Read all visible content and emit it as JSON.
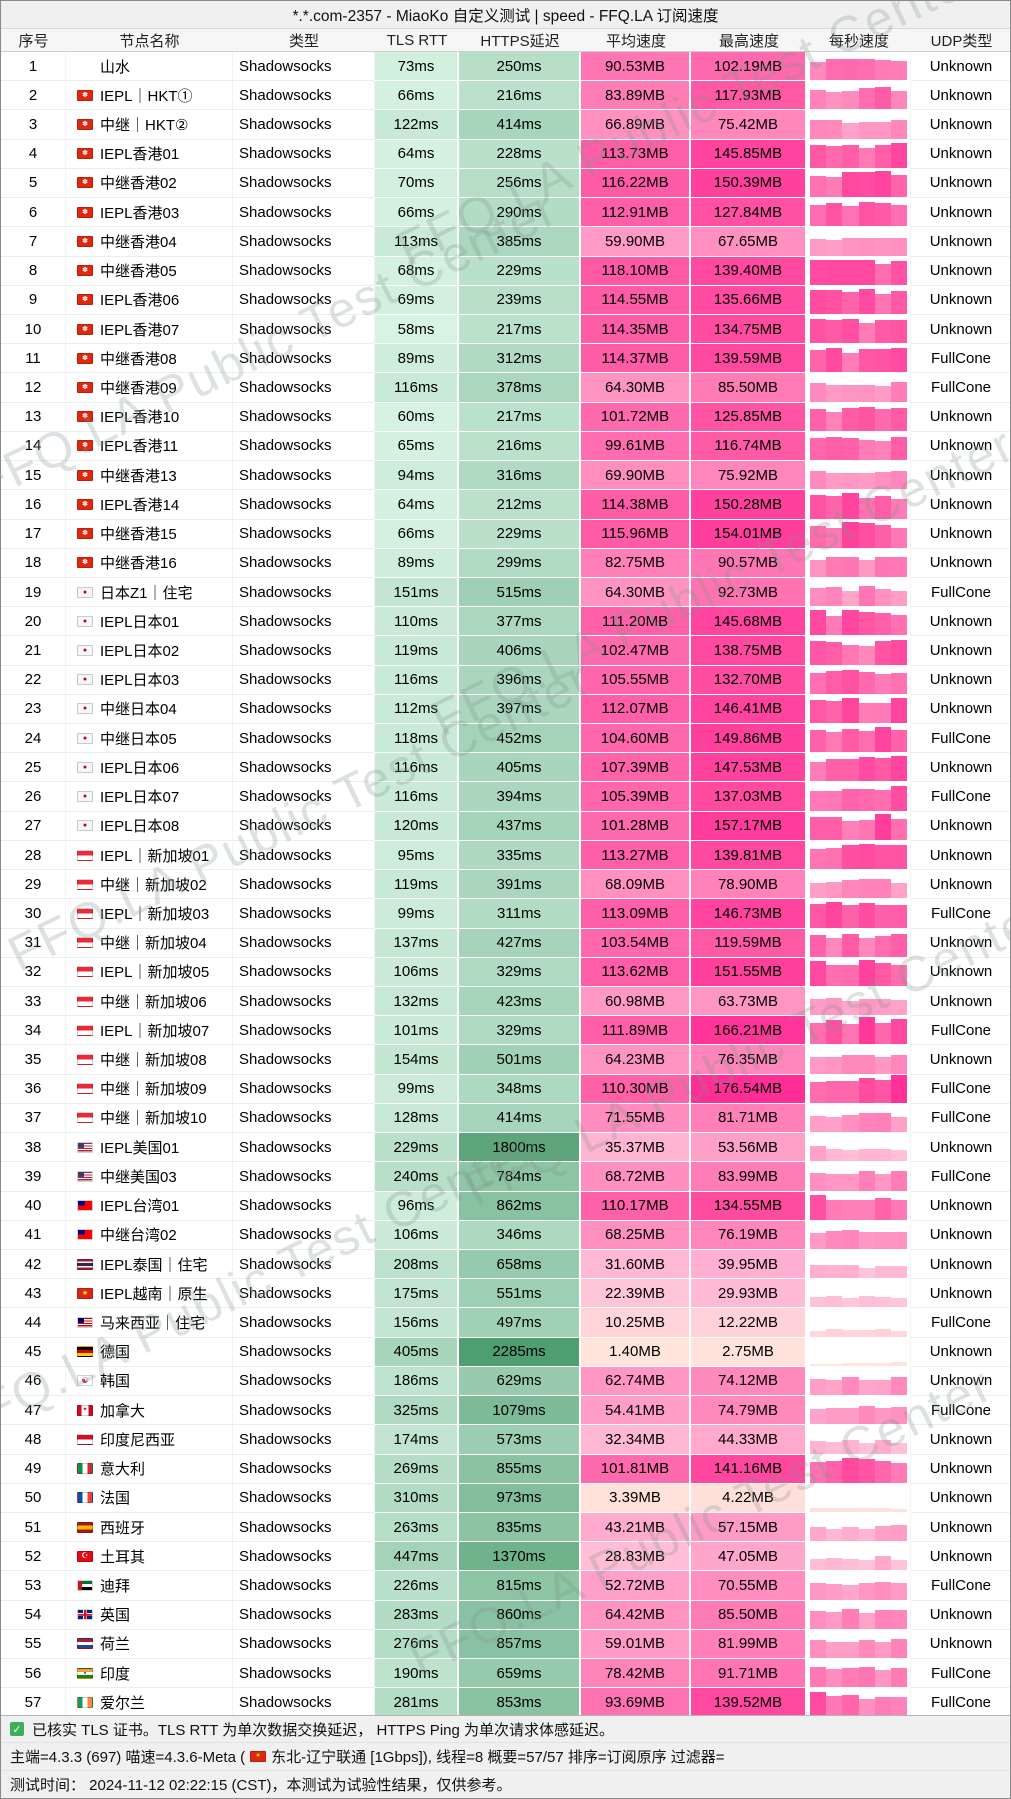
{
  "title": "*.*.com-2357 - MiaoKo 自定义测试 | speed - FFQ.LA 订阅速度",
  "watermark": "FFQ.LA Public Test Center",
  "columns": [
    "序号",
    "节点名称",
    "类型",
    "TLS RTT",
    "HTTPS延迟",
    "平均速度",
    "最高速度",
    "每秒速度",
    "UDP类型"
  ],
  "colors": {
    "titlebar_bg": "#f0f0f0",
    "green_scale": [
      "#def7e8",
      "#4f9e71"
    ],
    "pink_scale": [
      "#ffeadb",
      "#ffc3d9",
      "#ff93c2",
      "#ff5aa6",
      "#ff2d96"
    ],
    "checkbox_green": "#3fae5a",
    "flag_hk_red": "#de2910",
    "flag_jp_red": "#bc002d"
  },
  "icons": {
    "check": "✓"
  },
  "footer": {
    "tls_note": "已核实 TLS 证书。TLS RTT 为单次数据交换延迟， HTTPS Ping 为单次请求体感延迟。",
    "meta_left": "主端=4.3.3 (697) 喵速=4.3.6-Meta (",
    "meta_right": "东北-辽宁联通 [1Gbps]), 线程=8 概要=57/57 排序=订阅原序 过滤器=",
    "time_note": "测试时间： 2024-11-12 02:22:15 (CST)，本测试为试验性结果，仅供参考。"
  },
  "rows": [
    {
      "no": 1,
      "flag": "",
      "name": "山水",
      "type": "Shadowsocks",
      "tls": "73ms",
      "https": "250ms",
      "avg": "90.53MB",
      "max": "102.19MB",
      "udp": "Unknown"
    },
    {
      "no": 2,
      "flag": "hk",
      "name": "IEPL｜HKT①",
      "type": "Shadowsocks",
      "tls": "66ms",
      "https": "216ms",
      "avg": "83.89MB",
      "max": "117.93MB",
      "udp": "Unknown"
    },
    {
      "no": 3,
      "flag": "hk",
      "name": "中继｜HKT②",
      "type": "Shadowsocks",
      "tls": "122ms",
      "https": "414ms",
      "avg": "66.89MB",
      "max": "75.42MB",
      "udp": "Unknown"
    },
    {
      "no": 4,
      "flag": "hk",
      "name": "IEPL香港01",
      "type": "Shadowsocks",
      "tls": "64ms",
      "https": "228ms",
      "avg": "113.73MB",
      "max": "145.85MB",
      "udp": "Unknown"
    },
    {
      "no": 5,
      "flag": "hk",
      "name": "中继香港02",
      "type": "Shadowsocks",
      "tls": "70ms",
      "https": "256ms",
      "avg": "116.22MB",
      "max": "150.39MB",
      "udp": "Unknown"
    },
    {
      "no": 6,
      "flag": "hk",
      "name": "IEPL香港03",
      "type": "Shadowsocks",
      "tls": "66ms",
      "https": "290ms",
      "avg": "112.91MB",
      "max": "127.84MB",
      "udp": "Unknown"
    },
    {
      "no": 7,
      "flag": "hk",
      "name": "中继香港04",
      "type": "Shadowsocks",
      "tls": "113ms",
      "https": "385ms",
      "avg": "59.90MB",
      "max": "67.65MB",
      "udp": "Unknown"
    },
    {
      "no": 8,
      "flag": "hk",
      "name": "中继香港05",
      "type": "Shadowsocks",
      "tls": "68ms",
      "https": "229ms",
      "avg": "118.10MB",
      "max": "139.40MB",
      "udp": "Unknown"
    },
    {
      "no": 9,
      "flag": "hk",
      "name": "IEPL香港06",
      "type": "Shadowsocks",
      "tls": "69ms",
      "https": "239ms",
      "avg": "114.55MB",
      "max": "135.66MB",
      "udp": "Unknown"
    },
    {
      "no": 10,
      "flag": "hk",
      "name": "IEPL香港07",
      "type": "Shadowsocks",
      "tls": "58ms",
      "https": "217ms",
      "avg": "114.35MB",
      "max": "134.75MB",
      "udp": "Unknown"
    },
    {
      "no": 11,
      "flag": "hk",
      "name": "中继香港08",
      "type": "Shadowsocks",
      "tls": "89ms",
      "https": "312ms",
      "avg": "114.37MB",
      "max": "139.59MB",
      "udp": "FullCone"
    },
    {
      "no": 12,
      "flag": "hk",
      "name": "中继香港09",
      "type": "Shadowsocks",
      "tls": "116ms",
      "https": "378ms",
      "avg": "64.30MB",
      "max": "85.50MB",
      "udp": "FullCone"
    },
    {
      "no": 13,
      "flag": "hk",
      "name": "IEPL香港10",
      "type": "Shadowsocks",
      "tls": "60ms",
      "https": "217ms",
      "avg": "101.72MB",
      "max": "125.85MB",
      "udp": "Unknown"
    },
    {
      "no": 14,
      "flag": "hk",
      "name": "IEPL香港11",
      "type": "Shadowsocks",
      "tls": "65ms",
      "https": "216ms",
      "avg": "99.61MB",
      "max": "116.74MB",
      "udp": "Unknown"
    },
    {
      "no": 15,
      "flag": "hk",
      "name": "中继香港13",
      "type": "Shadowsocks",
      "tls": "94ms",
      "https": "316ms",
      "avg": "69.90MB",
      "max": "75.92MB",
      "udp": "Unknown"
    },
    {
      "no": 16,
      "flag": "hk",
      "name": "IEPL香港14",
      "type": "Shadowsocks",
      "tls": "64ms",
      "https": "212ms",
      "avg": "114.38MB",
      "max": "150.28MB",
      "udp": "Unknown"
    },
    {
      "no": 17,
      "flag": "hk",
      "name": "中继香港15",
      "type": "Shadowsocks",
      "tls": "66ms",
      "https": "229ms",
      "avg": "115.96MB",
      "max": "154.01MB",
      "udp": "Unknown"
    },
    {
      "no": 18,
      "flag": "hk",
      "name": "中继香港16",
      "type": "Shadowsocks",
      "tls": "89ms",
      "https": "299ms",
      "avg": "82.75MB",
      "max": "90.57MB",
      "udp": "Unknown"
    },
    {
      "no": 19,
      "flag": "jp",
      "name": "日本Z1｜住宅",
      "type": "Shadowsocks",
      "tls": "151ms",
      "https": "515ms",
      "avg": "64.30MB",
      "max": "92.73MB",
      "udp": "FullCone"
    },
    {
      "no": 20,
      "flag": "jp",
      "name": "IEPL日本01",
      "type": "Shadowsocks",
      "tls": "110ms",
      "https": "377ms",
      "avg": "111.20MB",
      "max": "145.68MB",
      "udp": "Unknown"
    },
    {
      "no": 21,
      "flag": "jp",
      "name": "IEPL日本02",
      "type": "Shadowsocks",
      "tls": "119ms",
      "https": "406ms",
      "avg": "102.47MB",
      "max": "138.75MB",
      "udp": "Unknown"
    },
    {
      "no": 22,
      "flag": "jp",
      "name": "IEPL日本03",
      "type": "Shadowsocks",
      "tls": "116ms",
      "https": "396ms",
      "avg": "105.55MB",
      "max": "132.70MB",
      "udp": "Unknown"
    },
    {
      "no": 23,
      "flag": "jp",
      "name": "中继日本04",
      "type": "Shadowsocks",
      "tls": "112ms",
      "https": "397ms",
      "avg": "112.07MB",
      "max": "146.41MB",
      "udp": "Unknown"
    },
    {
      "no": 24,
      "flag": "jp",
      "name": "中继日本05",
      "type": "Shadowsocks",
      "tls": "118ms",
      "https": "452ms",
      "avg": "104.60MB",
      "max": "149.86MB",
      "udp": "FullCone"
    },
    {
      "no": 25,
      "flag": "jp",
      "name": "IEPL日本06",
      "type": "Shadowsocks",
      "tls": "116ms",
      "https": "405ms",
      "avg": "107.39MB",
      "max": "147.53MB",
      "udp": "Unknown"
    },
    {
      "no": 26,
      "flag": "jp",
      "name": "IEPL日本07",
      "type": "Shadowsocks",
      "tls": "116ms",
      "https": "394ms",
      "avg": "105.39MB",
      "max": "137.03MB",
      "udp": "FullCone"
    },
    {
      "no": 27,
      "flag": "jp",
      "name": "IEPL日本08",
      "type": "Shadowsocks",
      "tls": "120ms",
      "https": "437ms",
      "avg": "101.28MB",
      "max": "157.17MB",
      "udp": "Unknown"
    },
    {
      "no": 28,
      "flag": "sg",
      "name": "IEPL｜新加坡01",
      "type": "Shadowsocks",
      "tls": "95ms",
      "https": "335ms",
      "avg": "113.27MB",
      "max": "139.81MB",
      "udp": "Unknown"
    },
    {
      "no": 29,
      "flag": "sg",
      "name": "中继｜新加坡02",
      "type": "Shadowsocks",
      "tls": "119ms",
      "https": "391ms",
      "avg": "68.09MB",
      "max": "78.90MB",
      "udp": "Unknown"
    },
    {
      "no": 30,
      "flag": "sg",
      "name": "IEPL｜新加坡03",
      "type": "Shadowsocks",
      "tls": "99ms",
      "https": "311ms",
      "avg": "113.09MB",
      "max": "146.73MB",
      "udp": "FullCone"
    },
    {
      "no": 31,
      "flag": "sg",
      "name": "中继｜新加坡04",
      "type": "Shadowsocks",
      "tls": "137ms",
      "https": "427ms",
      "avg": "103.54MB",
      "max": "119.59MB",
      "udp": "Unknown"
    },
    {
      "no": 32,
      "flag": "sg",
      "name": "IEPL｜新加坡05",
      "type": "Shadowsocks",
      "tls": "106ms",
      "https": "329ms",
      "avg": "113.62MB",
      "max": "151.55MB",
      "udp": "Unknown"
    },
    {
      "no": 33,
      "flag": "sg",
      "name": "中继｜新加坡06",
      "type": "Shadowsocks",
      "tls": "132ms",
      "https": "423ms",
      "avg": "60.98MB",
      "max": "63.73MB",
      "udp": "Unknown"
    },
    {
      "no": 34,
      "flag": "sg",
      "name": "IEPL｜新加坡07",
      "type": "Shadowsocks",
      "tls": "101ms",
      "https": "329ms",
      "avg": "111.89MB",
      "max": "166.21MB",
      "udp": "FullCone"
    },
    {
      "no": 35,
      "flag": "sg",
      "name": "中继｜新加坡08",
      "type": "Shadowsocks",
      "tls": "154ms",
      "https": "501ms",
      "avg": "64.23MB",
      "max": "76.35MB",
      "udp": "Unknown"
    },
    {
      "no": 36,
      "flag": "sg",
      "name": "中继｜新加坡09",
      "type": "Shadowsocks",
      "tls": "99ms",
      "https": "348ms",
      "avg": "110.30MB",
      "max": "176.54MB",
      "udp": "FullCone"
    },
    {
      "no": 37,
      "flag": "sg",
      "name": "中继｜新加坡10",
      "type": "Shadowsocks",
      "tls": "128ms",
      "https": "414ms",
      "avg": "71.55MB",
      "max": "81.71MB",
      "udp": "FullCone"
    },
    {
      "no": 38,
      "flag": "us",
      "name": "IEPL美国01",
      "type": "Shadowsocks",
      "tls": "229ms",
      "https": "1800ms",
      "avg": "35.37MB",
      "max": "53.56MB",
      "udp": "Unknown"
    },
    {
      "no": 39,
      "flag": "us",
      "name": "中继美国03",
      "type": "Shadowsocks",
      "tls": "240ms",
      "https": "784ms",
      "avg": "68.72MB",
      "max": "83.99MB",
      "udp": "FullCone"
    },
    {
      "no": 40,
      "flag": "tw",
      "name": "IEPL台湾01",
      "type": "Shadowsocks",
      "tls": "96ms",
      "https": "862ms",
      "avg": "110.17MB",
      "max": "134.55MB",
      "udp": "Unknown"
    },
    {
      "no": 41,
      "flag": "tw",
      "name": "中继台湾02",
      "type": "Shadowsocks",
      "tls": "106ms",
      "https": "346ms",
      "avg": "68.25MB",
      "max": "76.19MB",
      "udp": "Unknown"
    },
    {
      "no": 42,
      "flag": "th",
      "name": "IEPL泰国｜住宅",
      "type": "Shadowsocks",
      "tls": "208ms",
      "https": "658ms",
      "avg": "31.60MB",
      "max": "39.95MB",
      "udp": "Unknown"
    },
    {
      "no": 43,
      "flag": "vn",
      "name": "IEPL越南｜原生",
      "type": "Shadowsocks",
      "tls": "175ms",
      "https": "551ms",
      "avg": "22.39MB",
      "max": "29.93MB",
      "udp": "Unknown"
    },
    {
      "no": 44,
      "flag": "my",
      "name": "马来西亚｜住宅",
      "type": "Shadowsocks",
      "tls": "156ms",
      "https": "497ms",
      "avg": "10.25MB",
      "max": "12.22MB",
      "udp": "FullCone"
    },
    {
      "no": 45,
      "flag": "de",
      "name": "德国",
      "type": "Shadowsocks",
      "tls": "405ms",
      "https": "2285ms",
      "avg": "1.40MB",
      "max": "2.75MB",
      "udp": "Unknown"
    },
    {
      "no": 46,
      "flag": "kr",
      "name": "韩国",
      "type": "Shadowsocks",
      "tls": "186ms",
      "https": "629ms",
      "avg": "62.74MB",
      "max": "74.12MB",
      "udp": "Unknown"
    },
    {
      "no": 47,
      "flag": "ca",
      "name": "加拿大",
      "type": "Shadowsocks",
      "tls": "325ms",
      "https": "1079ms",
      "avg": "54.41MB",
      "max": "74.79MB",
      "udp": "FullCone"
    },
    {
      "no": 48,
      "flag": "id",
      "name": "印度尼西亚",
      "type": "Shadowsocks",
      "tls": "174ms",
      "https": "573ms",
      "avg": "32.34MB",
      "max": "44.33MB",
      "udp": "Unknown"
    },
    {
      "no": 49,
      "flag": "it",
      "name": "意大利",
      "type": "Shadowsocks",
      "tls": "269ms",
      "https": "855ms",
      "avg": "101.81MB",
      "max": "141.16MB",
      "udp": "Unknown"
    },
    {
      "no": 50,
      "flag": "fr",
      "name": "法国",
      "type": "Shadowsocks",
      "tls": "310ms",
      "https": "973ms",
      "avg": "3.39MB",
      "max": "4.22MB",
      "udp": "Unknown"
    },
    {
      "no": 51,
      "flag": "es",
      "name": "西班牙",
      "type": "Shadowsocks",
      "tls": "263ms",
      "https": "835ms",
      "avg": "43.21MB",
      "max": "57.15MB",
      "udp": "Unknown"
    },
    {
      "no": 52,
      "flag": "tr",
      "name": "土耳其",
      "type": "Shadowsocks",
      "tls": "447ms",
      "https": "1370ms",
      "avg": "28.83MB",
      "max": "47.05MB",
      "udp": "Unknown"
    },
    {
      "no": 53,
      "flag": "ae",
      "name": "迪拜",
      "type": "Shadowsocks",
      "tls": "226ms",
      "https": "815ms",
      "avg": "52.72MB",
      "max": "70.55MB",
      "udp": "FullCone"
    },
    {
      "no": 54,
      "flag": "gb",
      "name": "英国",
      "type": "Shadowsocks",
      "tls": "283ms",
      "https": "860ms",
      "avg": "64.42MB",
      "max": "85.50MB",
      "udp": "Unknown"
    },
    {
      "no": 55,
      "flag": "nl",
      "name": "荷兰",
      "type": "Shadowsocks",
      "tls": "276ms",
      "https": "857ms",
      "avg": "59.01MB",
      "max": "81.99MB",
      "udp": "Unknown"
    },
    {
      "no": 56,
      "flag": "in",
      "name": "印度",
      "type": "Shadowsocks",
      "tls": "190ms",
      "https": "659ms",
      "avg": "78.42MB",
      "max": "91.71MB",
      "udp": "FullCone"
    },
    {
      "no": 57,
      "flag": "ie",
      "name": "爱尔兰",
      "type": "Shadowsocks",
      "tls": "281ms",
      "https": "853ms",
      "avg": "93.69MB",
      "max": "139.52MB",
      "udp": "FullCone"
    }
  ]
}
